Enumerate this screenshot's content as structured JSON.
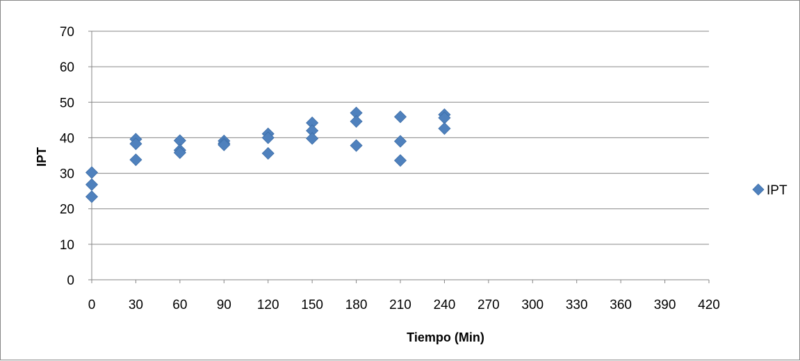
{
  "chart_data": {
    "type": "scatter",
    "title": "",
    "xlabel": "Tiempo (Min)",
    "ylabel": "IPT",
    "xlim": [
      0,
      420
    ],
    "ylim": [
      0,
      70
    ],
    "xticks": [
      0,
      30,
      60,
      90,
      120,
      150,
      180,
      210,
      240,
      270,
      300,
      330,
      360,
      390,
      420
    ],
    "yticks": [
      0,
      10,
      20,
      30,
      40,
      50,
      60,
      70
    ],
    "grid": "horizontal",
    "legend_position": "right",
    "series": [
      {
        "name": "IPT",
        "color": "#4f81bd",
        "marker": "diamond",
        "points": [
          {
            "x": 0,
            "y": 30.2
          },
          {
            "x": 0,
            "y": 26.8
          },
          {
            "x": 0,
            "y": 23.4
          },
          {
            "x": 30,
            "y": 39.6
          },
          {
            "x": 30,
            "y": 38.3
          },
          {
            "x": 30,
            "y": 33.8
          },
          {
            "x": 60,
            "y": 39.2
          },
          {
            "x": 60,
            "y": 36.5
          },
          {
            "x": 60,
            "y": 35.8
          },
          {
            "x": 90,
            "y": 39.1
          },
          {
            "x": 90,
            "y": 38.4
          },
          {
            "x": 90,
            "y": 38.0
          },
          {
            "x": 120,
            "y": 41.1
          },
          {
            "x": 120,
            "y": 40.0
          },
          {
            "x": 120,
            "y": 35.6
          },
          {
            "x": 150,
            "y": 44.2
          },
          {
            "x": 150,
            "y": 42.0
          },
          {
            "x": 150,
            "y": 39.8
          },
          {
            "x": 180,
            "y": 47.0
          },
          {
            "x": 180,
            "y": 44.6
          },
          {
            "x": 180,
            "y": 37.8
          },
          {
            "x": 210,
            "y": 45.9
          },
          {
            "x": 210,
            "y": 39.0
          },
          {
            "x": 210,
            "y": 33.6
          },
          {
            "x": 240,
            "y": 46.5
          },
          {
            "x": 240,
            "y": 45.6
          },
          {
            "x": 240,
            "y": 42.6
          }
        ]
      }
    ]
  }
}
